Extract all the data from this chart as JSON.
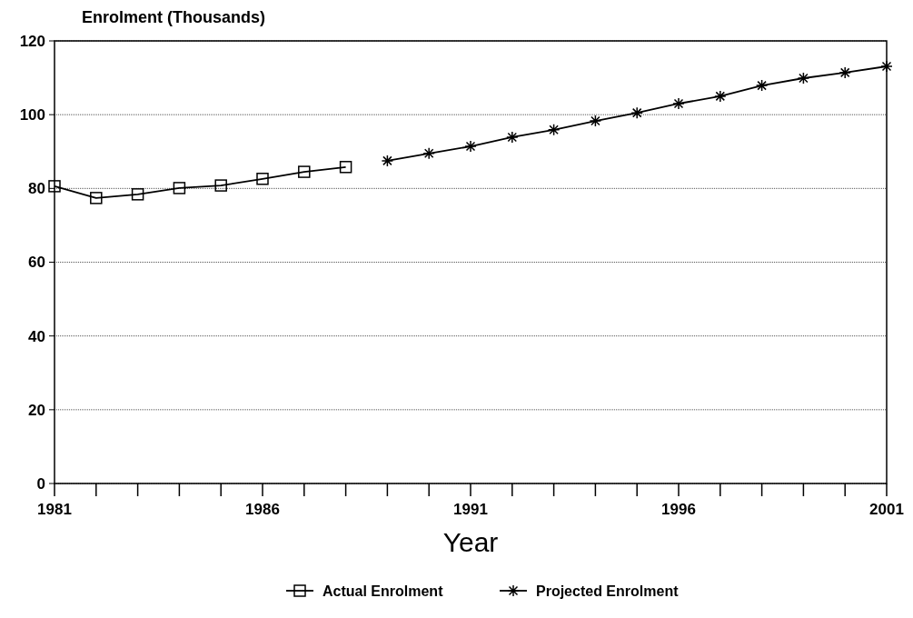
{
  "chart_data": {
    "type": "line",
    "ylabel": "Enrolment (Thousands)",
    "xlabel": "Year",
    "xlim": [
      1981,
      2001
    ],
    "ylim": [
      0,
      120
    ],
    "xticks": [
      1981,
      {
        "value": 1982,
        "label": null
      },
      {
        "value": 1983,
        "label": null
      },
      {
        "value": 1984,
        "label": null
      },
      {
        "value": 1985,
        "label": null
      },
      1986,
      {
        "value": 1987,
        "label": null
      },
      {
        "value": 1988,
        "label": null
      },
      {
        "value": 1989,
        "label": null
      },
      {
        "value": 1990,
        "label": null
      },
      1991,
      {
        "value": 1992,
        "label": null
      },
      {
        "value": 1993,
        "label": null
      },
      {
        "value": 1994,
        "label": null
      },
      {
        "value": 1995,
        "label": null
      },
      1996,
      {
        "value": 1997,
        "label": null
      },
      {
        "value": 1998,
        "label": null
      },
      {
        "value": 1999,
        "label": null
      },
      {
        "value": 2000,
        "label": null
      },
      2001
    ],
    "yticks": [
      0,
      20,
      40,
      60,
      80,
      100,
      120
    ],
    "grid": "y",
    "legend": "bottom",
    "line_style": "solid",
    "series": [
      {
        "name": "Actual Enrolment",
        "color": "#000000",
        "marker": "square",
        "x": [
          1981,
          1982,
          1983,
          1984,
          1985,
          1986,
          1987,
          1988
        ],
        "values": [
          80.6,
          77.4,
          78.4,
          80.1,
          80.8,
          82.6,
          84.5,
          85.8
        ]
      },
      {
        "name": "Projected Enrolment",
        "color": "#000000",
        "marker": "cross",
        "x": [
          1989,
          1990,
          1991,
          1992,
          1993,
          1994,
          1995,
          1996,
          1997,
          1998,
          1999,
          2000,
          2001
        ],
        "values": [
          87.5,
          89.5,
          91.4,
          93.9,
          95.9,
          98.3,
          100.5,
          103,
          105,
          107.9,
          109.9,
          111.4,
          113.1
        ]
      }
    ]
  }
}
